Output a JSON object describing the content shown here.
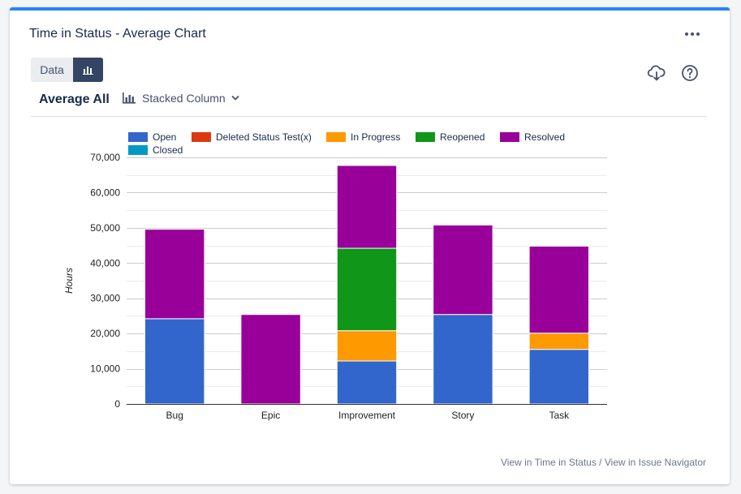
{
  "header": {
    "title": "Time in Status - Average Chart"
  },
  "toolbar": {
    "data_label": "Data"
  },
  "controls": {
    "average_label": "Average All",
    "chart_type_label": "Stacked Column"
  },
  "footer": {
    "link1": "View in Time in Status",
    "separator": " / ",
    "link2": "View in Issue Navigator"
  },
  "colors": {
    "accent": "#2684ff"
  },
  "chart_data": {
    "type": "bar",
    "stacked": true,
    "categories": [
      "Bug",
      "Epic",
      "Improvement",
      "Story",
      "Task"
    ],
    "series": [
      {
        "name": "Open",
        "color": "#3366cc",
        "values": [
          24200,
          0,
          12200,
          25400,
          15500
        ]
      },
      {
        "name": "Deleted Status Test(x)",
        "color": "#dc3912",
        "values": [
          0,
          0,
          0,
          0,
          0
        ]
      },
      {
        "name": "In Progress",
        "color": "#ff9900",
        "values": [
          0,
          0,
          8600,
          0,
          4600
        ]
      },
      {
        "name": "Reopened",
        "color": "#109618",
        "values": [
          0,
          0,
          23400,
          0,
          0
        ]
      },
      {
        "name": "Resolved",
        "color": "#990099",
        "values": [
          25400,
          25400,
          23500,
          25400,
          24700
        ]
      },
      {
        "name": "Closed",
        "color": "#0099c6",
        "values": [
          0,
          0,
          0,
          0,
          0
        ]
      }
    ],
    "ylabel": "Hours",
    "xlabel": "",
    "ylim": [
      0,
      70000
    ],
    "yticks": [
      0,
      10000,
      20000,
      30000,
      40000,
      50000,
      60000,
      70000
    ],
    "ytick_labels": [
      "0",
      "10,000",
      "20,000",
      "30,000",
      "40,000",
      "50,000",
      "60,000",
      "70,000"
    ]
  }
}
